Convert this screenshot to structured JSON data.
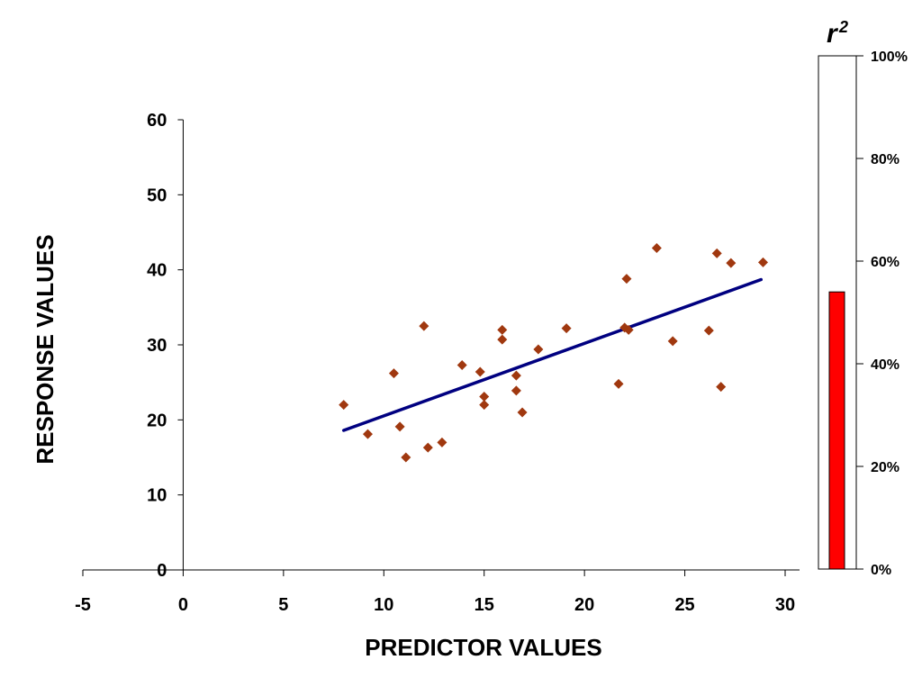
{
  "chart_data": [
    {
      "type": "scatter",
      "title": "",
      "xlabel": "PREDICTOR VALUES",
      "ylabel": "RESPONSE VALUES",
      "xlim": [
        -5,
        30
      ],
      "ylim": [
        0,
        60
      ],
      "x_ticks": [
        "-5",
        "0",
        "5",
        "10",
        "15",
        "20",
        "25",
        "30"
      ],
      "y_ticks": [
        "0",
        "10",
        "20",
        "30",
        "40",
        "50",
        "60"
      ],
      "grid": false,
      "colors": {
        "points": "#a0380f",
        "trendline": "#000080"
      },
      "points": [
        {
          "x": 8.0,
          "y": 22.0
        },
        {
          "x": 9.2,
          "y": 18.1
        },
        {
          "x": 10.5,
          "y": 26.2
        },
        {
          "x": 10.8,
          "y": 19.1
        },
        {
          "x": 11.1,
          "y": 15.0
        },
        {
          "x": 12.0,
          "y": 32.5
        },
        {
          "x": 12.2,
          "y": 16.3
        },
        {
          "x": 12.9,
          "y": 17.0
        },
        {
          "x": 13.9,
          "y": 27.3
        },
        {
          "x": 14.8,
          "y": 26.4
        },
        {
          "x": 15.0,
          "y": 23.1
        },
        {
          "x": 15.0,
          "y": 22.0
        },
        {
          "x": 15.9,
          "y": 32.0
        },
        {
          "x": 15.9,
          "y": 30.7
        },
        {
          "x": 16.6,
          "y": 25.9
        },
        {
          "x": 16.6,
          "y": 23.9
        },
        {
          "x": 16.9,
          "y": 21.0
        },
        {
          "x": 17.7,
          "y": 29.4
        },
        {
          "x": 19.1,
          "y": 32.2
        },
        {
          "x": 21.7,
          "y": 24.8
        },
        {
          "x": 22.0,
          "y": 32.3
        },
        {
          "x": 22.1,
          "y": 38.8
        },
        {
          "x": 22.2,
          "y": 32.0
        },
        {
          "x": 23.6,
          "y": 42.9
        },
        {
          "x": 24.4,
          "y": 30.5
        },
        {
          "x": 26.2,
          "y": 31.9
        },
        {
          "x": 26.6,
          "y": 42.2
        },
        {
          "x": 26.8,
          "y": 24.4
        },
        {
          "x": 27.3,
          "y": 40.9
        },
        {
          "x": 28.9,
          "y": 41.0
        }
      ],
      "trendline": {
        "x": [
          8.0,
          28.8
        ],
        "y": [
          18.6,
          38.7
        ]
      }
    },
    {
      "type": "bar",
      "title": "r2",
      "title_base": "r",
      "title_superscript": "2",
      "categories": [
        ""
      ],
      "values": [
        0.54
      ],
      "ylim": [
        0,
        1
      ],
      "y_ticks": [
        "0%",
        "20%",
        "40%",
        "60%",
        "80%",
        "100%"
      ],
      "colors": {
        "bar": "#ff0000"
      }
    }
  ]
}
